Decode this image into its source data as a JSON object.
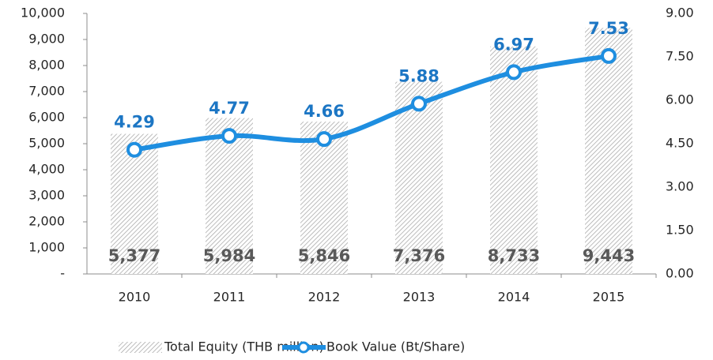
{
  "chart_data": {
    "type": "bar",
    "categories": [
      "2010",
      "2011",
      "2012",
      "2013",
      "2014",
      "2015"
    ],
    "series": [
      {
        "name": "Total Equity (THB million)",
        "type": "bar",
        "color": "#a6a6a6",
        "values": [
          5377,
          5984,
          5846,
          7376,
          8733,
          9443
        ],
        "value_labels": [
          "5,377",
          "5,984",
          "5,846",
          "7,376",
          "8,733",
          "9,443"
        ]
      },
      {
        "name": "Book Value (Bt/Share)",
        "type": "line",
        "axis": "y2",
        "color": "#1e8ee0",
        "values": [
          4.29,
          4.77,
          4.66,
          5.88,
          6.97,
          7.53
        ]
      }
    ],
    "ylim": [
      0,
      10000
    ],
    "yticks": [
      {
        "value": 0,
        "label": "-"
      },
      {
        "value": 1000,
        "label": "1,000"
      },
      {
        "value": 2000,
        "label": "2,000"
      },
      {
        "value": 3000,
        "label": "3,000"
      },
      {
        "value": 4000,
        "label": "4,000"
      },
      {
        "value": 5000,
        "label": "5,000"
      },
      {
        "value": 6000,
        "label": "6,000"
      },
      {
        "value": 7000,
        "label": "7,000"
      },
      {
        "value": 8000,
        "label": "8,000"
      },
      {
        "value": 9000,
        "label": "9,000"
      },
      {
        "value": 10000,
        "label": "10,000"
      }
    ],
    "y2lim": [
      0,
      9
    ],
    "y2ticks": [
      {
        "value": 0,
        "label": "0.00"
      },
      {
        "value": 1.5,
        "label": "1.50"
      },
      {
        "value": 3,
        "label": "3.00"
      },
      {
        "value": 4.5,
        "label": "4.50"
      },
      {
        "value": 6,
        "label": "6.00"
      },
      {
        "value": 7.5,
        "label": "7.50"
      },
      {
        "value": 9,
        "label": "9.00"
      }
    ],
    "legend": "bottom"
  }
}
